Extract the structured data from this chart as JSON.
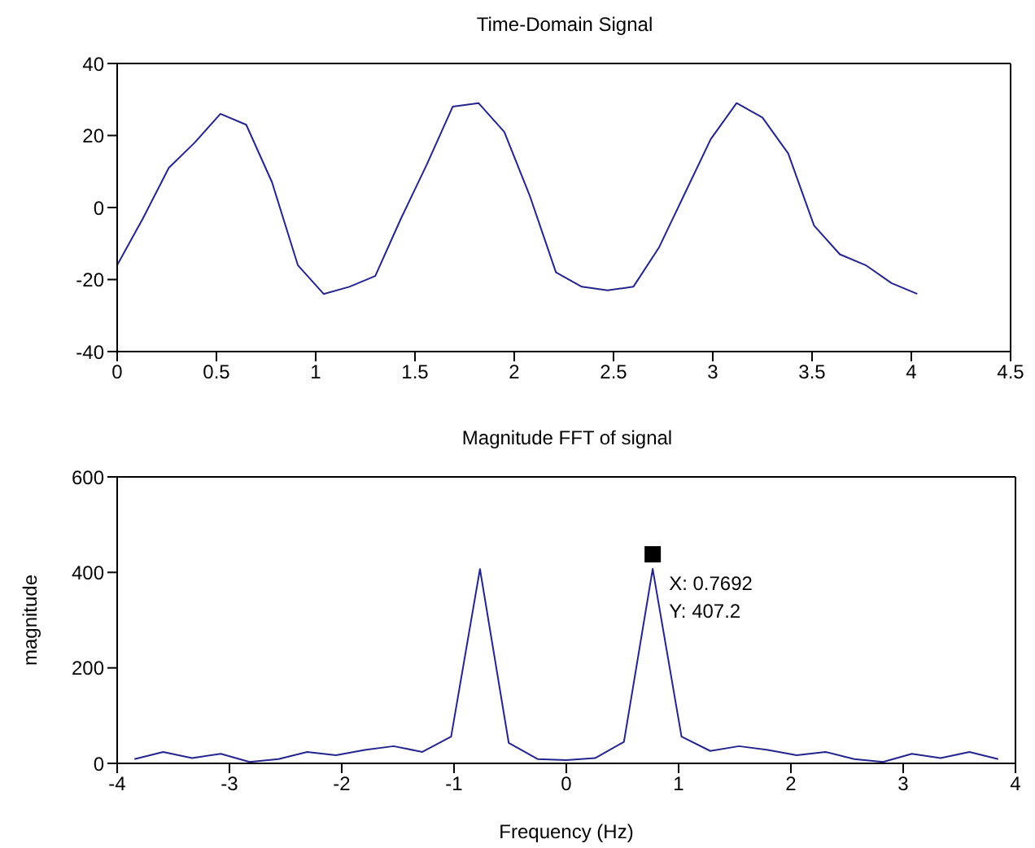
{
  "chart_data": [
    {
      "type": "line",
      "title": "Time-Domain Signal",
      "grid": false,
      "marker": "none",
      "line_style": "solid",
      "xlim": [
        0,
        4.5
      ],
      "xticks": [
        0,
        0.5,
        1,
        1.5,
        2,
        2.5,
        3,
        3.5,
        4,
        4.5
      ],
      "ylim": [
        -40,
        40
      ],
      "yticks": [
        -40,
        -20,
        0,
        20,
        40
      ],
      "x": [
        0,
        0.13,
        0.26,
        0.39,
        0.52,
        0.65,
        0.78,
        0.91,
        1.04,
        1.17,
        1.3,
        1.43,
        1.56,
        1.69,
        1.82,
        1.95,
        2.08,
        2.21,
        2.34,
        2.47,
        2.6,
        2.73,
        2.86,
        2.99,
        3.12,
        3.25,
        3.38,
        3.51,
        3.64,
        3.77,
        3.9,
        4.03
      ],
      "series": [
        {
          "color": "#24248f",
          "values": [
            -16,
            -3,
            11,
            18,
            26,
            23,
            7,
            -16,
            -24,
            -22,
            -19,
            -3,
            12,
            28,
            29,
            21,
            3,
            -18,
            -22,
            -23,
            -22,
            -11,
            4,
            19,
            29,
            25,
            15,
            -5,
            -13,
            -16,
            -21,
            -24
          ]
        }
      ]
    },
    {
      "type": "line",
      "title": "Magnitude FFT of signal",
      "xlabel": "Frequency (Hz)",
      "ylabel": "magnitude",
      "grid": false,
      "marker": "none",
      "line_style": "solid",
      "xlim": [
        -4,
        4
      ],
      "xticks": [
        -4,
        -3,
        -2,
        -1,
        0,
        1,
        2,
        3,
        4
      ],
      "ylim": [
        0,
        600
      ],
      "yticks": [
        0,
        200,
        400,
        600
      ],
      "x": [
        -3.846,
        -3.59,
        -3.333,
        -3.077,
        -2.821,
        -2.564,
        -2.308,
        -2.051,
        -1.795,
        -1.538,
        -1.282,
        -1.026,
        -0.769,
        -0.513,
        -0.256,
        0,
        0.256,
        0.513,
        0.7692,
        1.026,
        1.282,
        1.538,
        1.795,
        2.051,
        2.308,
        2.564,
        2.821,
        3.077,
        3.333,
        3.59,
        3.846
      ],
      "series": [
        {
          "color": "#24248f",
          "values": [
            9,
            24,
            11,
            20,
            3,
            9,
            24,
            17,
            28,
            36,
            24,
            56,
            407,
            43,
            9,
            7,
            11,
            45,
            407.2,
            56,
            26,
            36,
            28,
            17,
            24,
            9,
            3,
            20,
            11,
            24,
            9
          ]
        }
      ],
      "annotations": [
        {
          "text": "X: 0.7692",
          "x": 0.7692,
          "y": 407.2
        },
        {
          "text": "Y: 407.2",
          "x": 0.7692,
          "y": 407.2
        }
      ]
    }
  ]
}
